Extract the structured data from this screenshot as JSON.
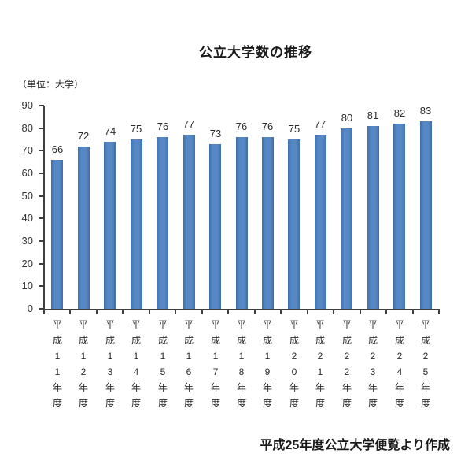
{
  "chart_data": {
    "type": "bar",
    "title": "公立大学数の推移",
    "unit_label": "（単位：大学）",
    "source": "平成25年度公立大学便覧より作成",
    "categories": [
      "平成11年度",
      "平成12年度",
      "平成13年度",
      "平成14年度",
      "平成15年度",
      "平成16年度",
      "平成17年度",
      "平成18年度",
      "平成19年度",
      "平成20年度",
      "平成21年度",
      "平成22年度",
      "平成23年度",
      "平成24年度",
      "平成25年度"
    ],
    "values": [
      66,
      72,
      74,
      75,
      76,
      77,
      73,
      76,
      76,
      75,
      77,
      80,
      81,
      82,
      83
    ],
    "xlabel": "",
    "ylabel": "",
    "ylim": [
      0,
      90
    ],
    "yticks": [
      0,
      10,
      20,
      30,
      40,
      50,
      60,
      70,
      80,
      90
    ],
    "grid": false,
    "legend": "none",
    "bar_color": "#4f81bd",
    "bar_edge_color": "#3e6fa8",
    "axis_color": "#3f3f3f",
    "text_color": "#2b2b2b"
  }
}
